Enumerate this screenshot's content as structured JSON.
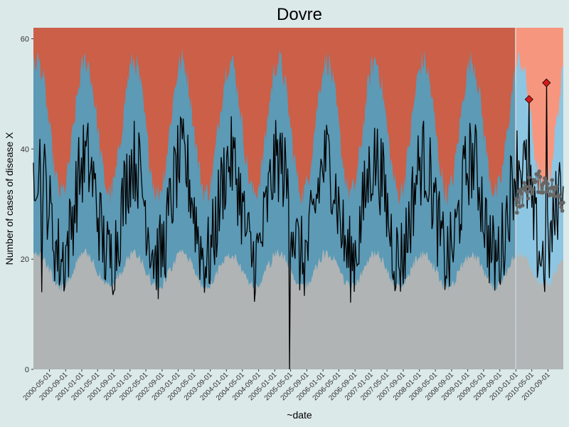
{
  "chart_data": {
    "type": "line",
    "title": "Dovre",
    "xlabel": "~date",
    "ylabel": "Number of cases of disease X",
    "x_range": [
      "2000-01-01",
      "2010-12-31"
    ],
    "ylim": [
      0,
      62
    ],
    "y_ticks": [
      0,
      20,
      40,
      60
    ],
    "x_tick_labels": [
      "2000-05-01",
      "2000-09-01",
      "2001-01-01",
      "2001-05-01",
      "2001-09-01",
      "2002-01-01",
      "2002-05-01",
      "2002-09-01",
      "2003-01-01",
      "2003-05-01",
      "2003-09-01",
      "2004-01-01",
      "2004-05-01",
      "2004-09-01",
      "2005-01-01",
      "2005-05-01",
      "2005-09-01",
      "2006-01-01",
      "2006-05-01",
      "2006-09-01",
      "2007-01-01",
      "2007-05-01",
      "2007-09-01",
      "2008-01-01",
      "2008-05-01",
      "2008-09-01",
      "2009-01-01",
      "2009-05-01",
      "2009-09-01",
      "2010-01-01",
      "2010-05-01",
      "2010-09-01"
    ],
    "prediction_start": "2010-01-01",
    "grid": false,
    "bands": {
      "lower_baseline": 18,
      "lower_amplitude": 3,
      "upper_baseline": 44,
      "upper_amplitude": 12,
      "seasonal_peak_month": 1
    },
    "observed": {
      "baseline": 29,
      "amplitude": 10,
      "noise": 5,
      "dips": [
        {
          "date": "2000-03-01",
          "value": 14
        },
        {
          "date": "2005-04-24",
          "value": 0
        }
      ]
    },
    "predictions": {
      "baseline": 30,
      "amplitude": 4,
      "noise": 2
    },
    "outbreaks": [
      {
        "date": "2010-04-10",
        "value": 49
      },
      {
        "date": "2010-08-20",
        "value": 52
      }
    ],
    "colors": {
      "background": "#dce9e9",
      "zone_high": "#cb5f48",
      "zone_normal": "#5c9ab6",
      "zone_low": "#b0b4b4",
      "pred_zone_high": "#f7967e",
      "pred_zone_normal": "#8dc6e2",
      "pred_zone_low": "#b3b6b6",
      "observed_line": "#000000",
      "prediction_points": "#666666",
      "outbreak_marker": "#d7191c"
    }
  }
}
